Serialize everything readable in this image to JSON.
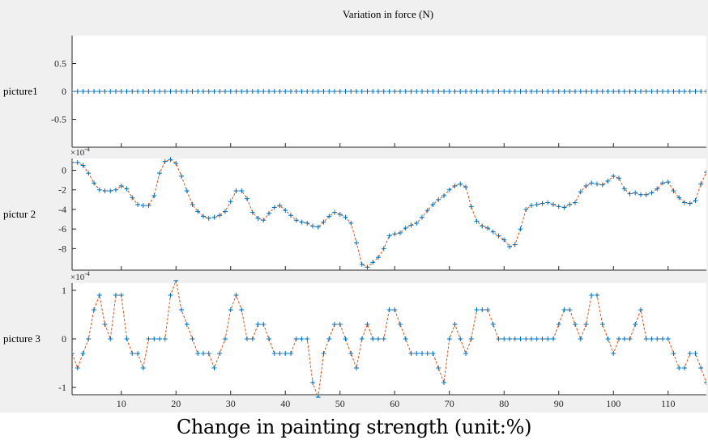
{
  "figure": {
    "title": "Variation in force (N)",
    "xlabel": "Change in painting strength (unit:%)",
    "background": "#f0f0f0",
    "axes_background": "#ffffff",
    "marker_color": "#0072bd",
    "line_color": "#d95319"
  },
  "chart_data": [
    {
      "type": "line",
      "panel_label": "picture1",
      "exponent_label": "",
      "xlim": [
        1,
        117
      ],
      "ylim": [
        -1,
        1
      ],
      "x_ticks": [
        10,
        20,
        30,
        40,
        50,
        60,
        70,
        80,
        90,
        100,
        110
      ],
      "x_tick_labels": [],
      "y_ticks": [
        0.5,
        0,
        -0.5
      ],
      "y_tick_labels": [
        "0.5",
        "0",
        "-0.5"
      ],
      "marker": "+",
      "line_style": "dashed",
      "series": [
        {
          "values": [
            0,
            0,
            0,
            0,
            0,
            0,
            0,
            0,
            0,
            0,
            0,
            0,
            0,
            0,
            0,
            0,
            0,
            0,
            0,
            0,
            0,
            0,
            0,
            0,
            0,
            0,
            0,
            0,
            0,
            0,
            0,
            0,
            0,
            0,
            0,
            0,
            0,
            0,
            0,
            0,
            0,
            0,
            0,
            0,
            0,
            0,
            0,
            0,
            0,
            0,
            0,
            0,
            0,
            0,
            0,
            0,
            0,
            0,
            0,
            0,
            0,
            0,
            0,
            0,
            0,
            0,
            0,
            0,
            0,
            0,
            0,
            0,
            0,
            0,
            0,
            0,
            0,
            0,
            0,
            0,
            0,
            0,
            0,
            0,
            0,
            0,
            0,
            0,
            0,
            0,
            0,
            0,
            0,
            0,
            0,
            0,
            0,
            0,
            0,
            0,
            0,
            0,
            0,
            0,
            0,
            0,
            0,
            0,
            0,
            0,
            0,
            0,
            0,
            0,
            0,
            0,
            0
          ]
        }
      ]
    },
    {
      "type": "line",
      "panel_label": "pictur 2",
      "exponent_label": "×10",
      "exponent_power": "-4",
      "xlim": [
        1,
        117
      ],
      "ylim": [
        -10.2,
        1.2
      ],
      "x_ticks": [
        10,
        20,
        30,
        40,
        50,
        60,
        70,
        80,
        90,
        100,
        110
      ],
      "x_tick_labels": [],
      "y_ticks": [
        0,
        -2,
        -4,
        -6,
        -8
      ],
      "y_tick_labels": [
        "0",
        "-2",
        "-4",
        "-6",
        "-8"
      ],
      "marker": "+",
      "line_style": "dashed",
      "series": [
        {
          "values": [
            0.8,
            0.8,
            0.5,
            -0.3,
            -1.3,
            -2.0,
            -2.1,
            -2.1,
            -2.0,
            -1.6,
            -1.9,
            -2.8,
            -3.5,
            -3.6,
            -3.6,
            -2.6,
            -0.3,
            0.9,
            1.1,
            0.7,
            -0.6,
            -2.1,
            -3.5,
            -4.2,
            -4.7,
            -4.9,
            -4.8,
            -4.6,
            -4.2,
            -3.2,
            -2.1,
            -2.1,
            -2.9,
            -4.3,
            -4.9,
            -5.1,
            -4.4,
            -3.8,
            -3.6,
            -4.1,
            -4.6,
            -5.1,
            -5.3,
            -5.4,
            -5.7,
            -5.8,
            -5.3,
            -4.7,
            -4.3,
            -4.5,
            -4.8,
            -5.4,
            -7.4,
            -9.6,
            -9.9,
            -9.4,
            -8.9,
            -8.0,
            -6.7,
            -6.5,
            -6.4,
            -5.9,
            -5.6,
            -5.4,
            -4.8,
            -4.1,
            -3.5,
            -3.0,
            -2.6,
            -2.0,
            -1.6,
            -1.4,
            -1.7,
            -3.7,
            -5.2,
            -5.7,
            -5.9,
            -6.3,
            -6.7,
            -7.1,
            -7.8,
            -7.6,
            -6.0,
            -4.0,
            -3.6,
            -3.5,
            -3.4,
            -3.3,
            -3.5,
            -3.7,
            -3.8,
            -3.5,
            -3.3,
            -2.2,
            -1.6,
            -1.3,
            -1.4,
            -1.5,
            -1.1,
            -0.6,
            -0.8,
            -1.9,
            -2.4,
            -2.3,
            -2.5,
            -2.5,
            -2.3,
            -1.9,
            -1.3,
            -1.2,
            -2.1,
            -2.8,
            -3.3,
            -3.4,
            -3.1,
            -1.4,
            -0.2
          ]
        }
      ]
    },
    {
      "type": "line",
      "panel_label": "picture 3",
      "exponent_label": "×10",
      "exponent_power": "-4",
      "xlim": [
        1,
        117
      ],
      "ylim": [
        -1.15,
        1.15
      ],
      "x_ticks": [
        10,
        20,
        30,
        40,
        50,
        60,
        70,
        80,
        90,
        100,
        110
      ],
      "x_tick_labels": [
        "10",
        "20",
        "30",
        "40",
        "50",
        "60",
        "70",
        "80",
        "90",
        "100",
        "110"
      ],
      "y_ticks": [
        1,
        0,
        -1
      ],
      "y_tick_labels": [
        "1",
        "0",
        "-1"
      ],
      "marker": "+",
      "line_style": "dashed",
      "series": [
        {
          "values": [
            -0.3,
            -0.6,
            -0.3,
            0.0,
            0.6,
            0.9,
            0.3,
            0.0,
            0.9,
            0.9,
            0.0,
            -0.3,
            -0.3,
            -0.6,
            0.0,
            0.0,
            0.0,
            0.0,
            0.9,
            1.2,
            0.6,
            0.3,
            0.0,
            -0.3,
            -0.3,
            -0.3,
            -0.6,
            -0.3,
            0.0,
            0.6,
            0.9,
            0.6,
            0.0,
            0.0,
            0.3,
            0.3,
            0.0,
            -0.3,
            -0.3,
            -0.3,
            -0.3,
            0.0,
            0.0,
            0.0,
            -0.9,
            -1.2,
            -0.3,
            0.0,
            0.3,
            0.3,
            0.0,
            -0.3,
            -0.6,
            0.0,
            0.3,
            0.0,
            0.0,
            0.0,
            0.6,
            0.6,
            0.3,
            0.0,
            -0.3,
            -0.3,
            -0.3,
            -0.3,
            -0.3,
            -0.6,
            -0.9,
            0.0,
            0.3,
            0.0,
            -0.3,
            0.0,
            0.6,
            0.6,
            0.6,
            0.3,
            0.0,
            0.0,
            0.0,
            0.0,
            0.0,
            0.0,
            0.0,
            0.0,
            0.0,
            0.0,
            0.0,
            0.3,
            0.6,
            0.6,
            0.3,
            0.0,
            0.3,
            0.9,
            0.9,
            0.3,
            0.0,
            -0.3,
            0.0,
            0.0,
            0.0,
            0.3,
            0.6,
            0.0,
            0.0,
            0.0,
            0.0,
            0.0,
            -0.3,
            -0.6,
            -0.6,
            -0.3,
            -0.3,
            -0.6,
            -0.9
          ]
        }
      ]
    }
  ]
}
